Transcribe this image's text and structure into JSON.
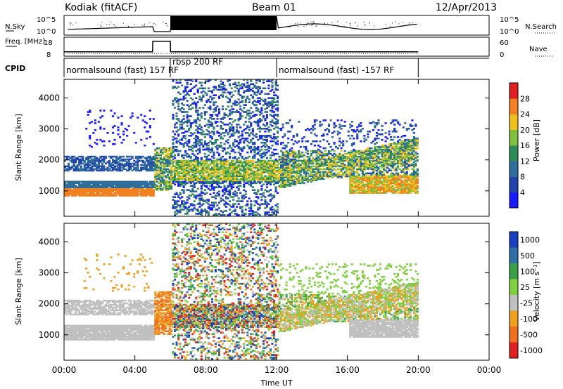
{
  "header": {
    "station": "Kodiak (fitACF)",
    "beam": "Beam 01",
    "date": "12/Apr/2013"
  },
  "chart_data": [
    {
      "type": "line",
      "panel": "N.Sky / N.Search",
      "ylabel_left": "N.Sky",
      "ylabel_right": "N.Search",
      "left_ticks": [
        "10^5",
        "10^0"
      ],
      "right_ticks": [
        "10^5",
        "10^0"
      ],
      "x_range_hours": [
        0,
        24
      ]
    },
    {
      "type": "line",
      "panel": "Freq / Nave",
      "ylabel_left": "Freq. [MHz]",
      "ylabel_right": "Nave",
      "left_ticks": [
        18,
        8
      ],
      "right_ticks": [
        60,
        0
      ],
      "series": [
        {
          "name": "Freq.",
          "x": [
            0,
            0.3,
            5,
            5.01,
            6,
            6.01,
            12,
            20
          ],
          "y": [
            10.5,
            10.5,
            10.5,
            16.5,
            16.5,
            10.5,
            10.5,
            10.5
          ]
        }
      ]
    },
    {
      "type": "table",
      "panel": "CPID",
      "label": "CPID",
      "segments": [
        {
          "text": "normalsound (fast) 157 RF",
          "start": 0,
          "end": 6
        },
        {
          "text": "rbsp 200 RF",
          "start": 6,
          "end": 12
        },
        {
          "text": "normalsound (fast) -157 RF",
          "start": 12,
          "end": 20
        }
      ]
    },
    {
      "type": "heatmap",
      "panel": "Power",
      "ylabel": "Slant Range [km]",
      "yticks": [
        1000,
        2000,
        3000,
        4000
      ],
      "ylim": [
        180,
        4600
      ],
      "colorbar_label": "Power [dB]",
      "colorbar_ticks": [
        4,
        8,
        12,
        16,
        20,
        24,
        28
      ],
      "colorscale": [
        "#1a1aff",
        "#2244aa",
        "#2f6e9a",
        "#2e8b57",
        "#7fbf3f",
        "#f0c020",
        "#f08020",
        "#e02020"
      ],
      "xticks": [
        "00:00",
        "04:00",
        "08:00",
        "12:00",
        "16:00",
        "20:00",
        "00:00"
      ],
      "xlabel": ""
    },
    {
      "type": "heatmap",
      "panel": "Velocity",
      "ylabel": "Slant Range [km]",
      "yticks": [
        1000,
        2000,
        3000,
        4000
      ],
      "ylim": [
        180,
        4600
      ],
      "colorbar_label": "Velocity [m s⁻¹]",
      "colorbar_ticks": [
        1000,
        500,
        100,
        25,
        -25,
        -100,
        -500,
        -1000
      ],
      "colorscale": [
        "#1a3fbf",
        "#2e6fa8",
        "#3aa04a",
        "#7fcf3f",
        "#c0c0c0",
        "#f0a020",
        "#f07020",
        "#e02020"
      ],
      "xticks": [
        "00:00",
        "04:00",
        "08:00",
        "12:00",
        "16:00",
        "20:00",
        "00:00"
      ],
      "xlabel": "Time UT"
    }
  ]
}
